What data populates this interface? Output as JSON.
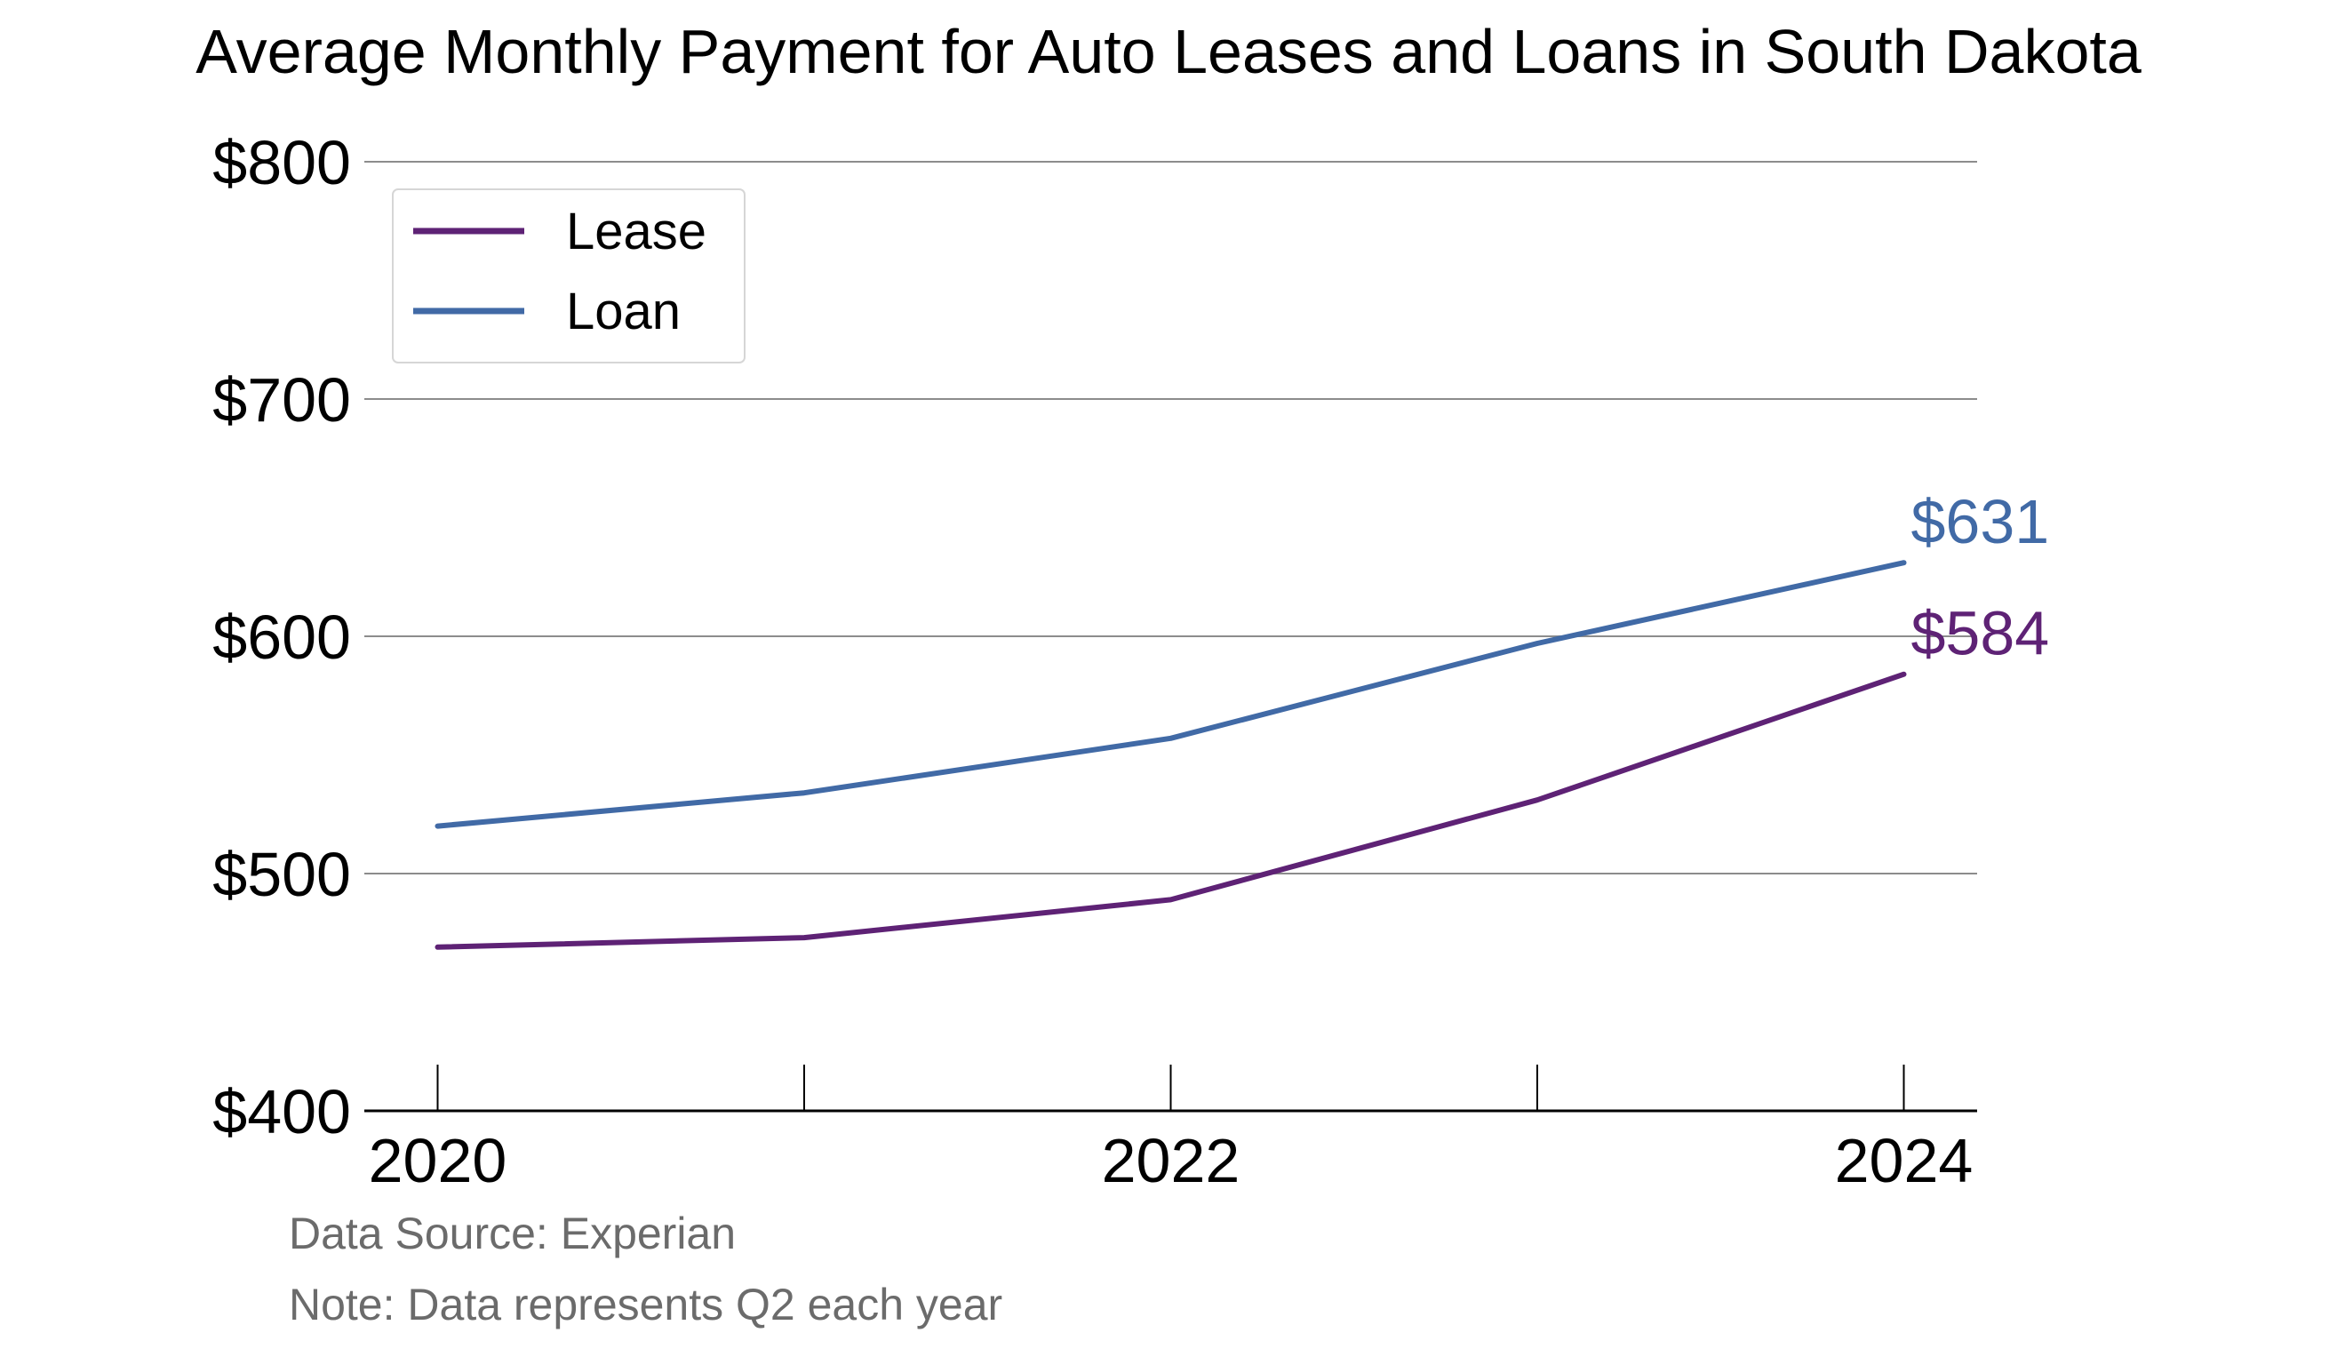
{
  "chart_data": {
    "type": "line",
    "title": "Average Monthly Payment for Auto Leases and Loans in South Dakota",
    "xlabel": "",
    "ylabel": "",
    "x": [
      2020,
      2021,
      2022,
      2023,
      2024
    ],
    "x_tick_labels": [
      "2020",
      "2022",
      "2024"
    ],
    "x_tick_values": [
      2020,
      2022,
      2024
    ],
    "y_tick_labels": [
      "$400",
      "$500",
      "$600",
      "$700",
      "$800"
    ],
    "y_tick_values": [
      400,
      500,
      600,
      700,
      800
    ],
    "ylim": [
      400,
      800
    ],
    "xlim": [
      2019.8,
      2024.2
    ],
    "grid": true,
    "legend_placement": "top-left",
    "series": [
      {
        "name": "Lease",
        "color": "#5e2275",
        "values": [
          469,
          473,
          489,
          531,
          584
        ],
        "end_label": "$584"
      },
      {
        "name": "Loan",
        "color": "#416aa6",
        "values": [
          520,
          534,
          557,
          597,
          631
        ],
        "end_label": "$631"
      }
    ],
    "notes": [
      "Data Source: Experian",
      "Note: Data represents Q2 each year"
    ]
  }
}
